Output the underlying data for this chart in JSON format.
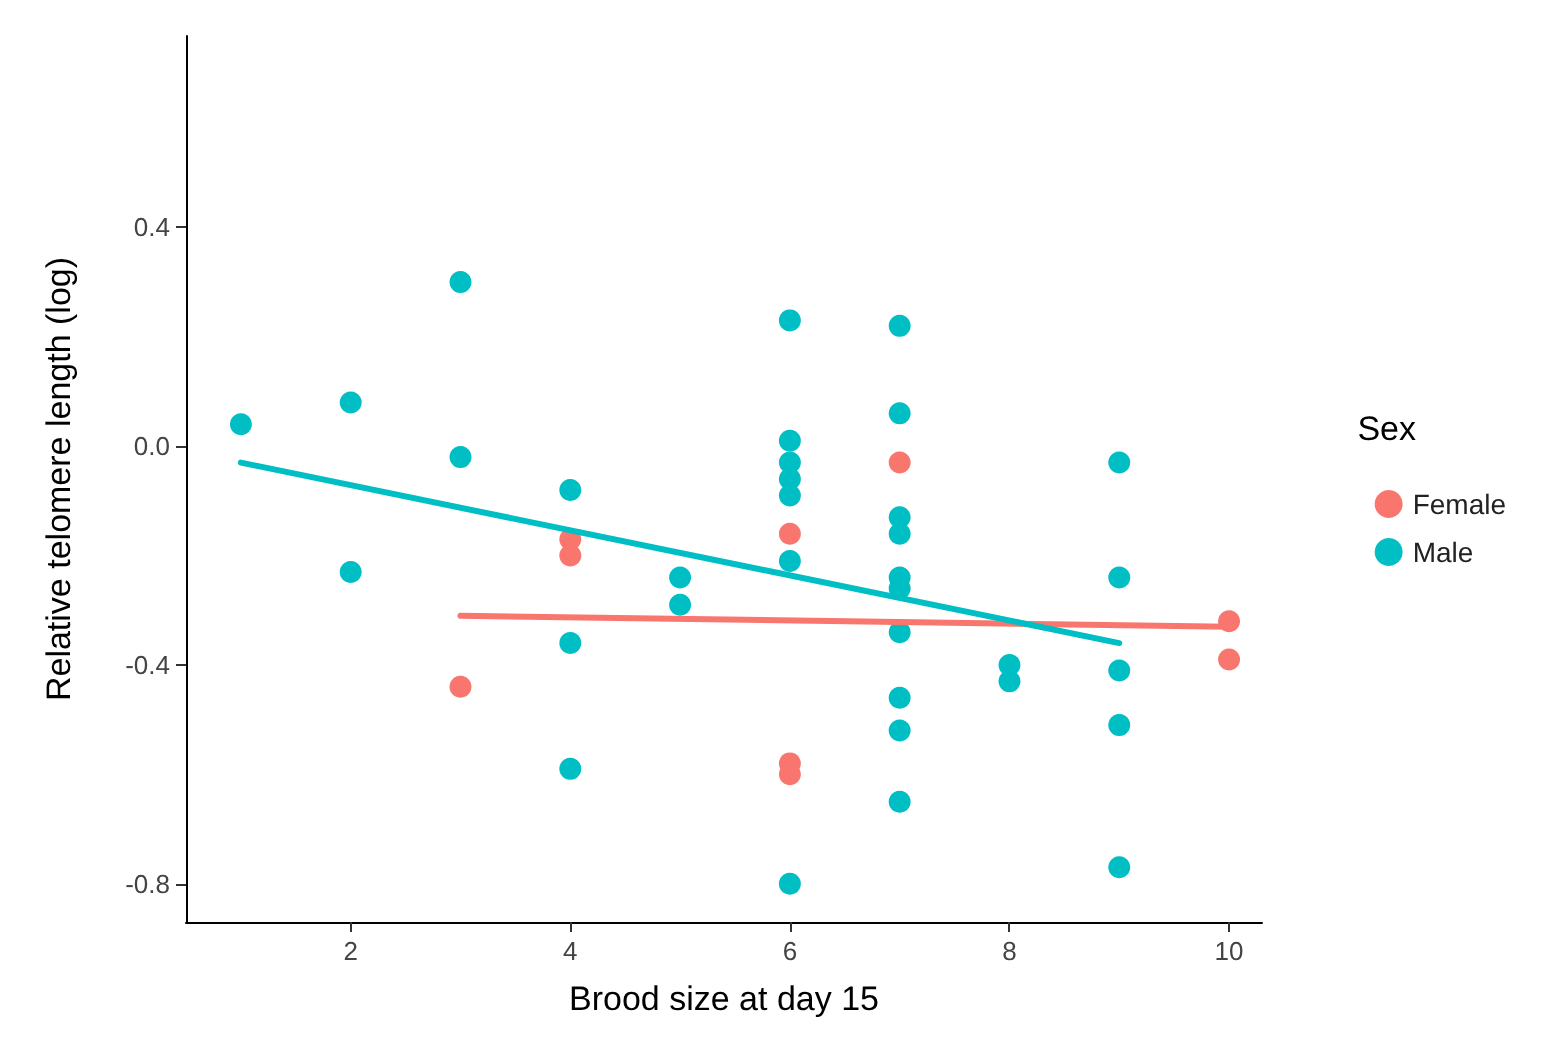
{
  "chart_data": {
    "type": "scatter",
    "xlabel": "Brood size at day 15",
    "ylabel": "Relative telomere length (log)",
    "legend_title": "Sex",
    "legend": "right",
    "grid": false,
    "xlim": [
      0.5,
      10.3
    ],
    "xticks": [
      2,
      4,
      6,
      8,
      10
    ],
    "ylim": [
      -0.87,
      0.75
    ],
    "yticks": [
      -0.8,
      -0.4,
      {
        "value": 0,
        "label": "0.0"
      },
      0.4
    ],
    "series": [
      {
        "name": "Female",
        "color": "#f8766d",
        "marker": "circle",
        "x": [
          3,
          4,
          4,
          6,
          6,
          6,
          7,
          10,
          10
        ],
        "values": [
          -0.44,
          -0.17,
          -0.2,
          -0.16,
          -0.58,
          -0.6,
          -0.03,
          -0.32,
          -0.39
        ]
      },
      {
        "name": "Male",
        "color": "#00bfc4",
        "marker": "circle",
        "x": [
          1,
          2,
          2,
          3,
          3,
          4,
          4,
          4,
          5,
          5,
          6,
          6,
          6,
          6,
          6,
          6,
          6,
          7,
          7,
          7,
          7,
          7,
          7,
          7,
          7,
          7,
          7,
          8,
          8,
          9,
          9,
          9,
          9,
          9
        ],
        "values": [
          0.04,
          0.08,
          -0.23,
          0.3,
          -0.02,
          -0.08,
          -0.36,
          -0.59,
          -0.24,
          -0.29,
          0.23,
          0.01,
          -0.03,
          -0.06,
          -0.09,
          -0.21,
          -0.8,
          0.22,
          0.06,
          -0.13,
          -0.16,
          -0.24,
          -0.26,
          -0.34,
          -0.46,
          -0.52,
          -0.65,
          -0.4,
          -0.43,
          -0.03,
          -0.24,
          -0.41,
          -0.51,
          -0.77
        ]
      },
      {
        "type": "line",
        "color": "#f8766d",
        "marker": "none",
        "x": [
          3,
          10
        ],
        "values": [
          -0.31,
          -0.33
        ]
      },
      {
        "type": "line",
        "color": "#00bfc4",
        "marker": "none",
        "x": [
          1,
          9
        ],
        "values": [
          -0.03,
          -0.36
        ]
      }
    ]
  }
}
